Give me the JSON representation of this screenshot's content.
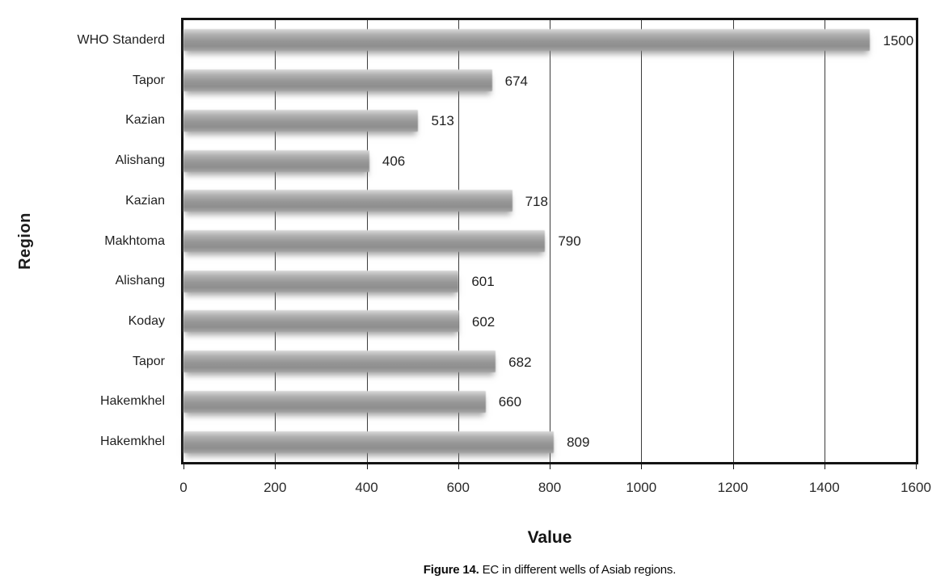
{
  "figure": {
    "caption_bold": "Figure 14.",
    "caption_rest": " EC in different wells of Asiab regions."
  },
  "chart_data": {
    "type": "bar",
    "orientation": "horizontal",
    "title": "",
    "xlabel": "Value",
    "ylabel": "Region",
    "xlim": [
      0,
      1600
    ],
    "xticks": [
      "0",
      "200",
      "400",
      "600",
      "800",
      "1000",
      "1200",
      "1400",
      "1600"
    ],
    "grid": true,
    "legend": "none",
    "bar_color": "#9a9a9a",
    "categories": [
      "WHO Standerd",
      "Tapor",
      "Kazian",
      "Alishang",
      "Kazian",
      "Makhtoma",
      "Alishang",
      "Koday",
      "Tapor",
      "Hakemkhel",
      "Hakemkhel"
    ],
    "values": [
      1500,
      674,
      513,
      406,
      718,
      790,
      601,
      602,
      682,
      660,
      809
    ],
    "data_labels": [
      "1500",
      "674",
      "513",
      "406",
      "718",
      "790",
      "601",
      "602",
      "682",
      "660",
      "809"
    ]
  }
}
